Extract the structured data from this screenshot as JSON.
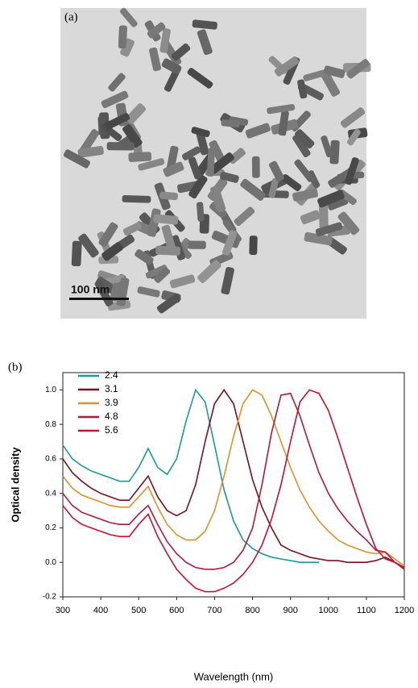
{
  "panel_a": {
    "label": "(a)",
    "scale_bar": "100 nm"
  },
  "panel_b": {
    "label": "(b)"
  },
  "chart_data": {
    "type": "line",
    "x_label": "Wavelength (nm)",
    "y_label": "Optical density",
    "x": [
      300,
      325,
      350,
      375,
      400,
      425,
      450,
      475,
      500,
      525,
      550,
      575,
      600,
      625,
      650,
      675,
      700,
      725,
      750,
      775,
      800,
      825,
      850,
      875,
      900,
      925,
      950,
      975,
      1000,
      1025,
      1050,
      1075,
      1100,
      1125,
      1150,
      1175,
      1200
    ],
    "series": [
      {
        "name": "2.4",
        "color": "#1a9a9a",
        "values": [
          0.68,
          0.6,
          0.56,
          0.53,
          0.51,
          0.49,
          0.47,
          0.47,
          0.55,
          0.66,
          0.55,
          0.51,
          0.6,
          0.82,
          1.0,
          0.93,
          0.68,
          0.42,
          0.24,
          0.13,
          0.08,
          0.05,
          0.03,
          0.02,
          0.01,
          0.0,
          0.0,
          0.0,
          null,
          null,
          null,
          null,
          null,
          null,
          null,
          null,
          null
        ]
      },
      {
        "name": "3.1",
        "color": "#7a1020",
        "values": [
          0.6,
          0.52,
          0.47,
          0.43,
          0.4,
          0.38,
          0.36,
          0.36,
          0.43,
          0.5,
          0.38,
          0.3,
          0.27,
          0.3,
          0.45,
          0.7,
          0.92,
          1.0,
          0.92,
          0.7,
          0.48,
          0.32,
          0.2,
          0.1,
          0.07,
          0.05,
          0.03,
          0.02,
          0.01,
          0.01,
          0.0,
          0.0,
          0.0,
          0.01,
          0.03,
          0.0,
          -0.03
        ]
      },
      {
        "name": "3.9",
        "color": "#e0902a",
        "values": [
          0.5,
          0.43,
          0.39,
          0.37,
          0.35,
          0.33,
          0.32,
          0.32,
          0.38,
          0.44,
          0.32,
          0.22,
          0.16,
          0.13,
          0.13,
          0.18,
          0.3,
          0.5,
          0.73,
          0.92,
          1.0,
          0.97,
          0.85,
          0.7,
          0.55,
          0.42,
          0.32,
          0.24,
          0.18,
          0.13,
          0.1,
          0.08,
          0.06,
          0.05,
          0.06,
          0.02,
          -0.02
        ]
      },
      {
        "name": "4.8",
        "color": "#b01a3a",
        "values": [
          0.4,
          0.33,
          0.29,
          0.27,
          0.25,
          0.23,
          0.22,
          0.22,
          0.28,
          0.33,
          0.22,
          0.12,
          0.05,
          0.0,
          -0.03,
          -0.04,
          -0.04,
          -0.03,
          0.0,
          0.07,
          0.2,
          0.45,
          0.75,
          0.97,
          0.98,
          0.85,
          0.68,
          0.52,
          0.4,
          0.31,
          0.24,
          0.18,
          0.13,
          0.07,
          0.06,
          0.0,
          -0.04
        ]
      },
      {
        "name": "5.6",
        "color": "#c8102e",
        "values": [
          0.33,
          0.26,
          0.22,
          0.2,
          0.18,
          0.16,
          0.15,
          0.15,
          0.22,
          0.28,
          0.15,
          0.05,
          -0.04,
          -0.1,
          -0.15,
          -0.17,
          -0.17,
          -0.15,
          -0.12,
          -0.07,
          0.0,
          0.1,
          0.25,
          0.45,
          0.7,
          0.93,
          1.0,
          0.98,
          0.88,
          0.72,
          0.55,
          0.38,
          0.22,
          0.08,
          0.02,
          0.0,
          -0.03
        ]
      }
    ],
    "xlim": [
      300,
      1200
    ],
    "xticks": [
      300,
      400,
      500,
      600,
      700,
      800,
      900,
      1000,
      1100,
      1200
    ],
    "ylim": [
      -0.2,
      1.1
    ],
    "yticks": [
      -0.2,
      {
        "value": 0,
        "label": "0.0"
      },
      0.2,
      0.4,
      0.6,
      0.8,
      {
        "value": 1,
        "label": "1.0"
      }
    ],
    "legend": "top-left"
  }
}
